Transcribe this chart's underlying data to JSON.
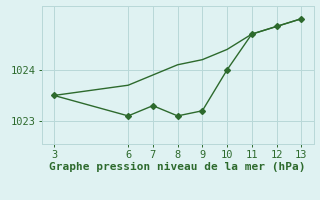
{
  "line1_x": [
    3,
    6,
    7,
    8,
    9,
    10,
    11,
    12,
    13
  ],
  "line1_y": [
    1023.5,
    1023.1,
    1023.3,
    1023.1,
    1023.2,
    1024.0,
    1024.7,
    1024.85,
    1025.0
  ],
  "line2_x": [
    3,
    6,
    7,
    8,
    9,
    10,
    11,
    12,
    13
  ],
  "line2_y": [
    1023.5,
    1023.7,
    1023.9,
    1024.1,
    1024.2,
    1024.4,
    1024.7,
    1024.85,
    1025.0
  ],
  "color": "#2d6a2d",
  "bg_color": "#dff2f2",
  "xlabel": "Graphe pression niveau de la mer (hPa)",
  "xticks": [
    3,
    6,
    7,
    8,
    9,
    10,
    11,
    12,
    13
  ],
  "yticks": [
    1023,
    1024
  ],
  "ylim": [
    1022.55,
    1025.25
  ],
  "xlim": [
    2.5,
    13.5
  ],
  "grid_color": "#b8d8d8",
  "marker": "D",
  "markersize": 3,
  "linewidth": 1.0,
  "xlabel_fontsize": 8,
  "tick_fontsize": 7.5
}
